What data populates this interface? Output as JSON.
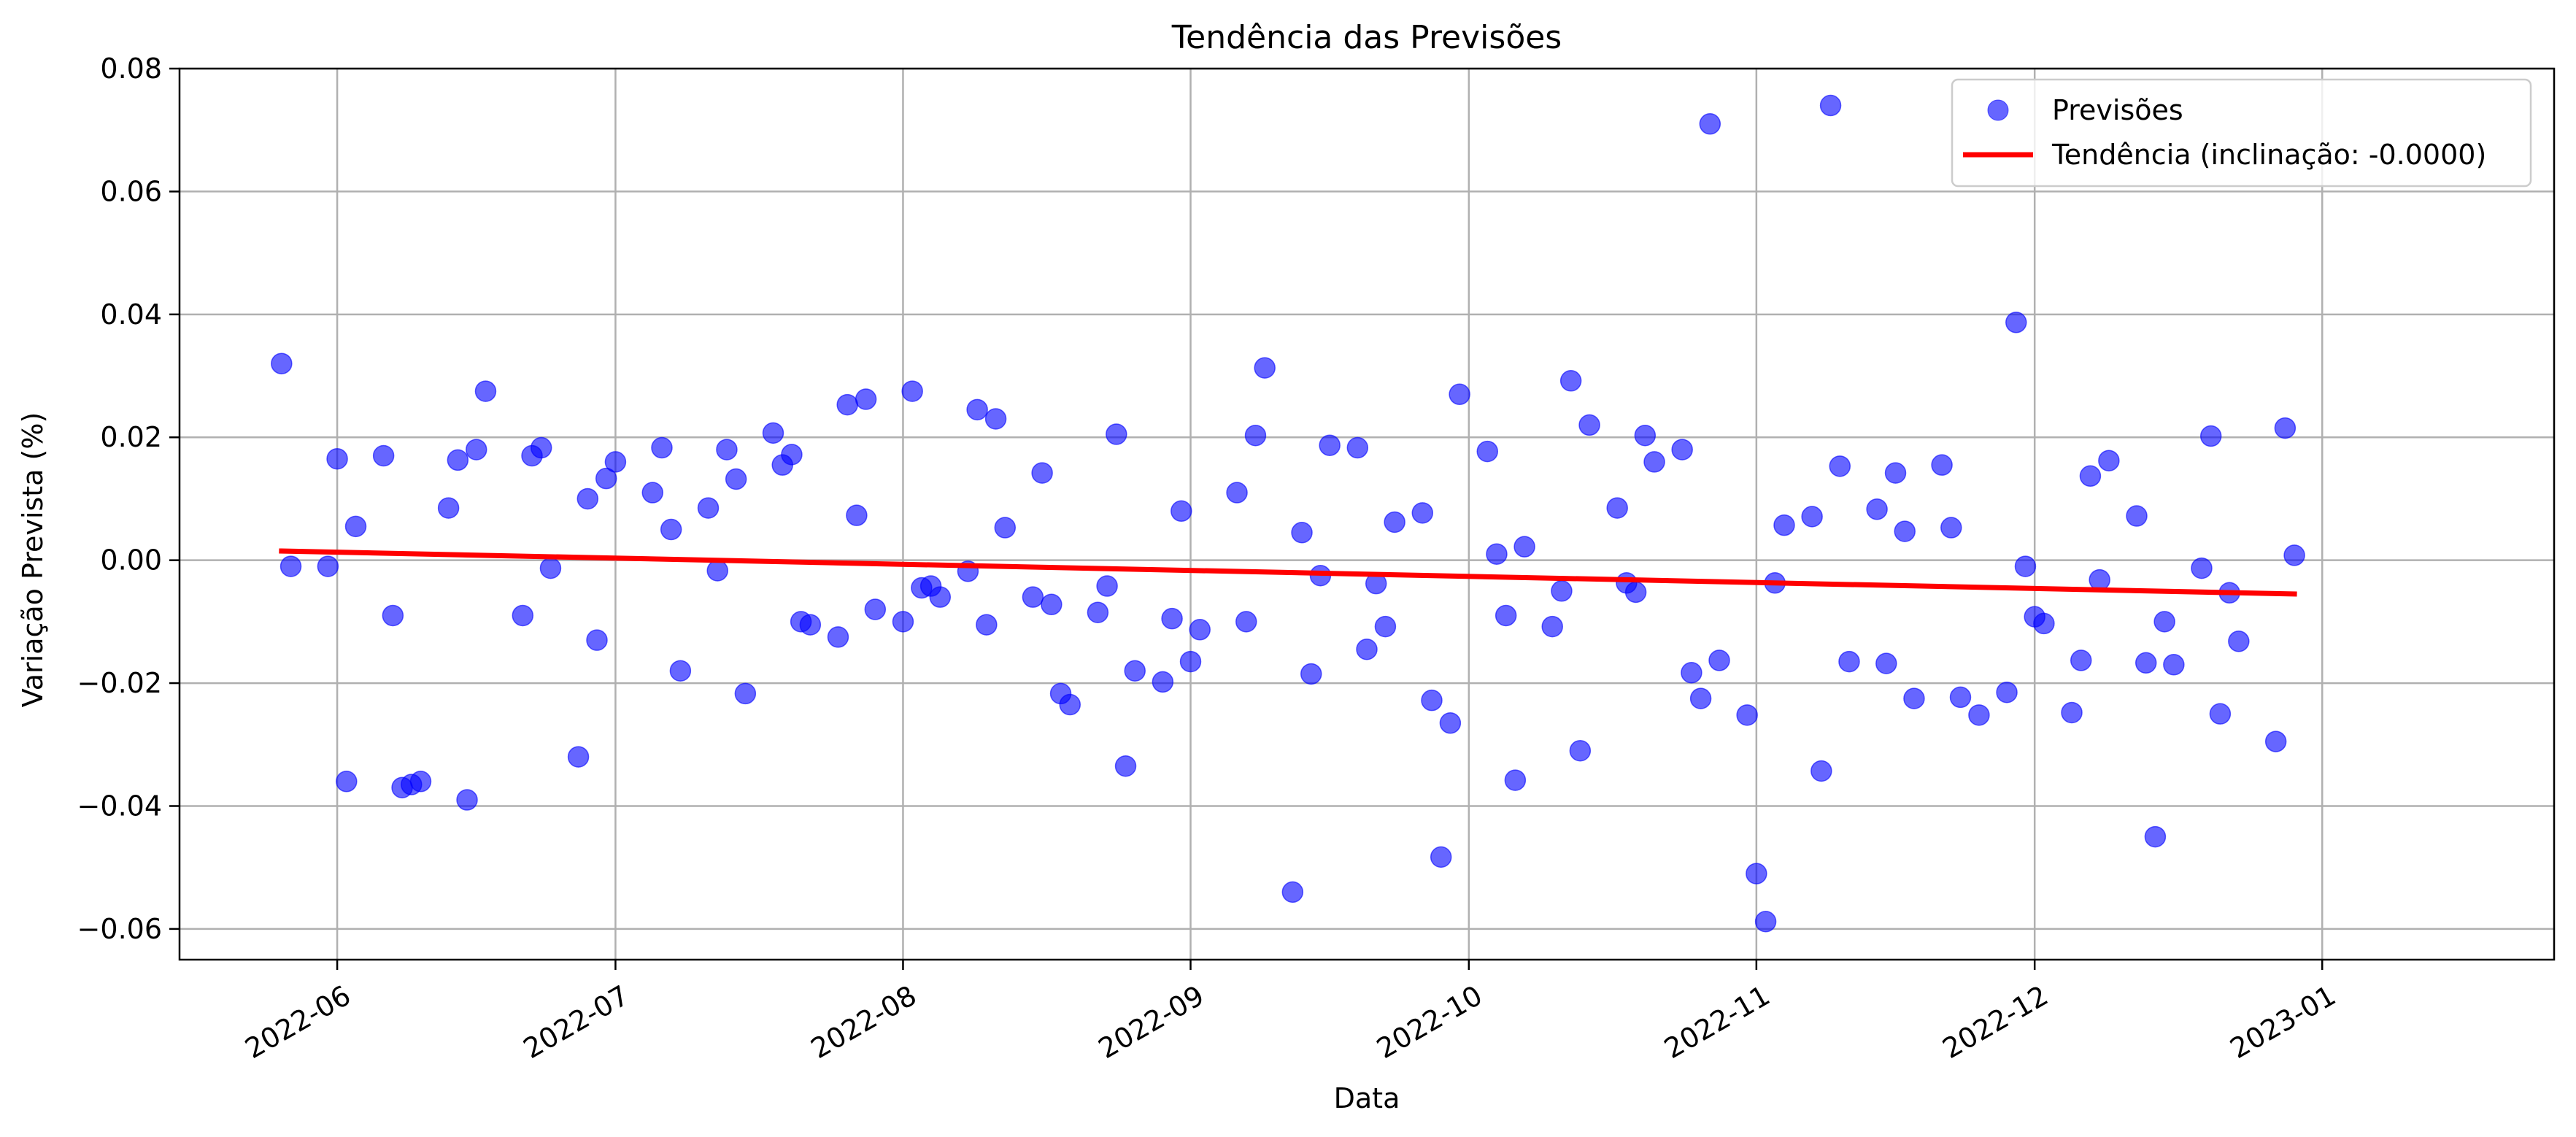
{
  "chart_data": {
    "type": "scatter",
    "title": "Tendência das Previsões",
    "xlabel": "Data",
    "ylabel": "Variação Prevista (%)",
    "xlim": [
      "2022-05-15",
      "2023-01-26"
    ],
    "ylim": [
      -0.065,
      0.08
    ],
    "grid": true,
    "legend_position": "top-right",
    "x_ticks": [
      {
        "date": "2022-06-01",
        "label": "2022-06"
      },
      {
        "date": "2022-07-01",
        "label": "2022-07"
      },
      {
        "date": "2022-08-01",
        "label": "2022-08"
      },
      {
        "date": "2022-09-01",
        "label": "2022-09"
      },
      {
        "date": "2022-10-01",
        "label": "2022-10"
      },
      {
        "date": "2022-11-01",
        "label": "2022-11"
      },
      {
        "date": "2022-12-01",
        "label": "2022-12"
      },
      {
        "date": "2023-01-01",
        "label": "2023-01"
      }
    ],
    "y_ticks": [
      {
        "value": -0.06,
        "label": "−0.06"
      },
      {
        "value": -0.04,
        "label": "−0.04"
      },
      {
        "value": -0.02,
        "label": "−0.02"
      },
      {
        "value": 0.0,
        "label": "0.00"
      },
      {
        "value": 0.02,
        "label": "0.02"
      },
      {
        "value": 0.04,
        "label": "0.04"
      },
      {
        "value": 0.06,
        "label": "0.06"
      },
      {
        "value": 0.08,
        "label": "0.08"
      }
    ],
    "series": [
      {
        "name": "Previsões",
        "kind": "scatter",
        "color": "#0000ff",
        "points": [
          [
            "2022-05-26",
            0.032
          ],
          [
            "2022-05-27",
            -0.001
          ],
          [
            "2022-05-31",
            -0.001
          ],
          [
            "2022-06-01",
            0.0165
          ],
          [
            "2022-06-02",
            -0.036
          ],
          [
            "2022-06-03",
            0.0055
          ],
          [
            "2022-06-06",
            0.017
          ],
          [
            "2022-06-07",
            -0.009
          ],
          [
            "2022-06-08",
            -0.037
          ],
          [
            "2022-06-09",
            -0.0365
          ],
          [
            "2022-06-10",
            -0.036
          ],
          [
            "2022-06-13",
            0.0085
          ],
          [
            "2022-06-14",
            0.0163
          ],
          [
            "2022-06-15",
            -0.039
          ],
          [
            "2022-06-16",
            0.018
          ],
          [
            "2022-06-17",
            0.0275
          ],
          [
            "2022-06-21",
            -0.009
          ],
          [
            "2022-06-22",
            0.017
          ],
          [
            "2022-06-23",
            0.0183
          ],
          [
            "2022-06-24",
            -0.0013
          ],
          [
            "2022-06-27",
            -0.032
          ],
          [
            "2022-06-28",
            0.01
          ],
          [
            "2022-06-29",
            -0.013
          ],
          [
            "2022-06-30",
            0.0133
          ],
          [
            "2022-07-01",
            0.016
          ],
          [
            "2022-07-05",
            0.011
          ],
          [
            "2022-07-06",
            0.0183
          ],
          [
            "2022-07-07",
            0.005
          ],
          [
            "2022-07-08",
            -0.018
          ],
          [
            "2022-07-11",
            0.0085
          ],
          [
            "2022-07-12",
            -0.0017
          ],
          [
            "2022-07-13",
            0.018
          ],
          [
            "2022-07-14",
            0.0132
          ],
          [
            "2022-07-15",
            -0.0217
          ],
          [
            "2022-07-18",
            0.0207
          ],
          [
            "2022-07-19",
            0.0155
          ],
          [
            "2022-07-20",
            0.0172
          ],
          [
            "2022-07-21",
            -0.01
          ],
          [
            "2022-07-22",
            -0.0105
          ],
          [
            "2022-07-25",
            -0.0125
          ],
          [
            "2022-07-26",
            0.0253
          ],
          [
            "2022-07-27",
            0.0073
          ],
          [
            "2022-07-28",
            0.0262
          ],
          [
            "2022-07-29",
            -0.008
          ],
          [
            "2022-08-01",
            -0.01
          ],
          [
            "2022-08-02",
            0.0275
          ],
          [
            "2022-08-03",
            -0.0045
          ],
          [
            "2022-08-04",
            -0.0042
          ],
          [
            "2022-08-05",
            -0.006
          ],
          [
            "2022-08-08",
            -0.0018
          ],
          [
            "2022-08-09",
            0.0245
          ],
          [
            "2022-08-10",
            -0.0105
          ],
          [
            "2022-08-11",
            0.023
          ],
          [
            "2022-08-12",
            0.0053
          ],
          [
            "2022-08-15",
            -0.006
          ],
          [
            "2022-08-16",
            0.0142
          ],
          [
            "2022-08-17",
            -0.0072
          ],
          [
            "2022-08-18",
            -0.0217
          ],
          [
            "2022-08-19",
            -0.0235
          ],
          [
            "2022-08-22",
            -0.0085
          ],
          [
            "2022-08-23",
            -0.0042
          ],
          [
            "2022-08-24",
            0.0205
          ],
          [
            "2022-08-25",
            -0.0335
          ],
          [
            "2022-08-26",
            -0.018
          ],
          [
            "2022-08-29",
            -0.0198
          ],
          [
            "2022-08-30",
            -0.0095
          ],
          [
            "2022-08-31",
            0.008
          ],
          [
            "2022-09-01",
            -0.0165
          ],
          [
            "2022-09-02",
            -0.0113
          ],
          [
            "2022-09-06",
            0.011
          ],
          [
            "2022-09-07",
            -0.01
          ],
          [
            "2022-09-08",
            0.0203
          ],
          [
            "2022-09-09",
            0.0313
          ],
          [
            "2022-09-12",
            -0.054
          ],
          [
            "2022-09-13",
            0.0045
          ],
          [
            "2022-09-14",
            -0.0185
          ],
          [
            "2022-09-15",
            -0.0025
          ],
          [
            "2022-09-16",
            0.0187
          ],
          [
            "2022-09-19",
            0.0183
          ],
          [
            "2022-09-20",
            -0.0145
          ],
          [
            "2022-09-21",
            -0.0038
          ],
          [
            "2022-09-22",
            -0.0108
          ],
          [
            "2022-09-23",
            0.0062
          ],
          [
            "2022-09-26",
            0.0077
          ],
          [
            "2022-09-27",
            -0.0228
          ],
          [
            "2022-09-28",
            -0.0483
          ],
          [
            "2022-09-29",
            -0.0265
          ],
          [
            "2022-09-30",
            0.027
          ],
          [
            "2022-10-03",
            0.0177
          ],
          [
            "2022-10-04",
            0.001
          ],
          [
            "2022-10-05",
            -0.009
          ],
          [
            "2022-10-06",
            -0.0358
          ],
          [
            "2022-10-07",
            0.0022
          ],
          [
            "2022-10-10",
            -0.0108
          ],
          [
            "2022-10-11",
            -0.005
          ],
          [
            "2022-10-12",
            0.0292
          ],
          [
            "2022-10-13",
            -0.031
          ],
          [
            "2022-10-14",
            0.022
          ],
          [
            "2022-10-17",
            0.0085
          ],
          [
            "2022-10-18",
            -0.0037
          ],
          [
            "2022-10-19",
            -0.0052
          ],
          [
            "2022-10-20",
            0.0203
          ],
          [
            "2022-10-21",
            0.016
          ],
          [
            "2022-10-24",
            0.018
          ],
          [
            "2022-10-25",
            -0.0183
          ],
          [
            "2022-10-26",
            -0.0225
          ],
          [
            "2022-10-27",
            0.071
          ],
          [
            "2022-10-28",
            -0.0163
          ],
          [
            "2022-10-31",
            -0.0252
          ],
          [
            "2022-11-01",
            -0.051
          ],
          [
            "2022-11-02",
            -0.0588
          ],
          [
            "2022-11-03",
            -0.0037
          ],
          [
            "2022-11-04",
            0.0057
          ],
          [
            "2022-11-07",
            0.0071
          ],
          [
            "2022-11-08",
            -0.0343
          ],
          [
            "2022-11-09",
            0.074
          ],
          [
            "2022-11-10",
            0.0153
          ],
          [
            "2022-11-11",
            -0.0165
          ],
          [
            "2022-11-14",
            0.0083
          ],
          [
            "2022-11-15",
            -0.0168
          ],
          [
            "2022-11-16",
            0.0142
          ],
          [
            "2022-11-17",
            0.0047
          ],
          [
            "2022-11-18",
            -0.0225
          ],
          [
            "2022-11-21",
            0.0155
          ],
          [
            "2022-11-22",
            0.0053
          ],
          [
            "2022-11-23",
            -0.0223
          ],
          [
            "2022-11-25",
            -0.0252
          ],
          [
            "2022-11-28",
            -0.0215
          ],
          [
            "2022-11-29",
            0.0387
          ],
          [
            "2022-11-30",
            -0.001
          ],
          [
            "2022-12-01",
            -0.0092
          ],
          [
            "2022-12-02",
            -0.0103
          ],
          [
            "2022-12-05",
            -0.0248
          ],
          [
            "2022-12-06",
            -0.0163
          ],
          [
            "2022-12-07",
            0.0137
          ],
          [
            "2022-12-08",
            -0.0032
          ],
          [
            "2022-12-09",
            0.0162
          ],
          [
            "2022-12-12",
            0.0072
          ],
          [
            "2022-12-13",
            -0.0167
          ],
          [
            "2022-12-14",
            -0.045
          ],
          [
            "2022-12-15",
            -0.01
          ],
          [
            "2022-12-16",
            -0.017
          ],
          [
            "2022-12-19",
            -0.0013
          ],
          [
            "2022-12-20",
            0.0202
          ],
          [
            "2022-12-21",
            -0.025
          ],
          [
            "2022-12-22",
            -0.0053
          ],
          [
            "2022-12-23",
            -0.0132
          ],
          [
            "2022-12-27",
            -0.0295
          ],
          [
            "2022-12-28",
            0.0215
          ],
          [
            "2022-12-29",
            0.0008
          ]
        ]
      },
      {
        "name": "Tendência (inclinação: -0.0000)",
        "kind": "line",
        "color": "#ff0000",
        "points": [
          [
            "2022-05-26",
            0.0015
          ],
          [
            "2022-12-29",
            -0.0055
          ]
        ]
      }
    ]
  }
}
